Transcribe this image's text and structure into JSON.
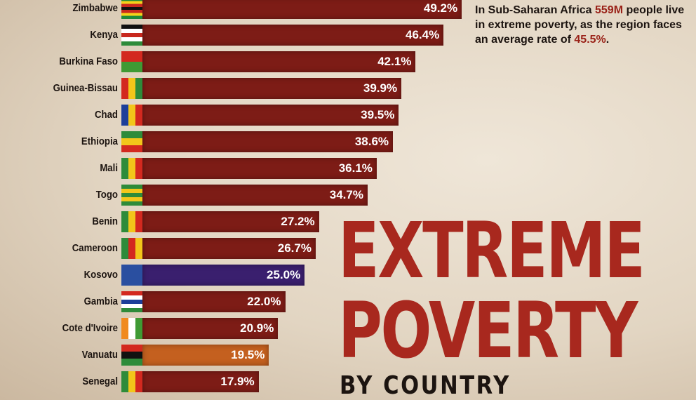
{
  "title": {
    "line1": "EXTREME",
    "line2": "POVERTY",
    "line3": "BY COUNTRY"
  },
  "note": {
    "pre": "In Sub-Saharan Africa ",
    "highlight1": "559M",
    "mid": " people live in extreme poverty, as the region faces an average rate of ",
    "highlight2": "45.5%",
    "post": "."
  },
  "chart_data": {
    "type": "bar",
    "orientation": "horizontal",
    "unit": "%",
    "categories": [
      "Zimbabwe",
      "Kenya",
      "Burkina Faso",
      "Guinea-Bissau",
      "Chad",
      "Ethiopia",
      "Mali",
      "Togo",
      "Benin",
      "Cameroon",
      "Kosovo",
      "Gambia",
      "Cote d'Ivoire",
      "Vanuatu",
      "Senegal"
    ],
    "values": [
      49.2,
      46.4,
      42.1,
      39.9,
      39.5,
      38.6,
      36.1,
      34.7,
      27.2,
      26.7,
      25.0,
      22.0,
      20.9,
      19.5,
      17.9
    ],
    "labels": [
      "49.2%",
      "46.4%",
      "42.1%",
      "39.9%",
      "39.5%",
      "38.6%",
      "36.1%",
      "34.7%",
      "27.2%",
      "26.7%",
      "25.0%",
      "22.0%",
      "20.9%",
      "19.5%",
      "17.9%"
    ],
    "bar_colors": {
      "default": "#7d1c16",
      "Kosovo": "#3a1f6e",
      "Vanuatu": "#c4601f"
    },
    "flags": {
      "Zimbabwe": [
        "#1f8a3a",
        "#f4d21a",
        "#c8281e",
        "#111111",
        "#c8281e",
        "#f4d21a",
        "#1f8a3a"
      ],
      "Kenya": [
        "#111111",
        "#ffffff",
        "#c8281e",
        "#ffffff",
        "#2e8b3a"
      ],
      "Burkina Faso": [
        "#d3291f",
        "#3f9a34"
      ],
      "Guinea-Bissau": [
        "#d3291f",
        "#f2c61a",
        "#2e8b3a"
      ],
      "Chad": [
        "#1d3f9a",
        "#f2c61a",
        "#d3291f"
      ],
      "Ethiopia": [
        "#2e8b3a",
        "#f2c61a",
        "#d3291f"
      ],
      "Mali": [
        "#2e8b3a",
        "#f2c61a",
        "#d3291f"
      ],
      "Togo": [
        "#2e8b3a",
        "#f2c61a",
        "#2e8b3a",
        "#f2c61a",
        "#2e8b3a"
      ],
      "Benin": [
        "#2e8b3a",
        "#f2c61a",
        "#d3291f"
      ],
      "Cameroon": [
        "#2e8b3a",
        "#d3291f",
        "#f2c61a"
      ],
      "Kosovo": [
        "#2a4fa0"
      ],
      "Gambia": [
        "#d3291f",
        "#ffffff",
        "#1d3f9a",
        "#ffffff",
        "#2e8b3a"
      ],
      "Cote d'Ivoire": [
        "#f08a1f",
        "#ffffff",
        "#3f9a34"
      ],
      "Vanuatu": [
        "#d3291f",
        "#111111",
        "#2e8b3a"
      ],
      "Senegal": [
        "#2e8b3a",
        "#f2c61a",
        "#d3291f"
      ]
    },
    "flag_orientation": {
      "Zimbabwe": "h",
      "Kenya": "h",
      "Burkina Faso": "h",
      "Togo": "h",
      "Gambia": "h",
      "Vanuatu": "h",
      "Ethiopia": "h"
    }
  }
}
